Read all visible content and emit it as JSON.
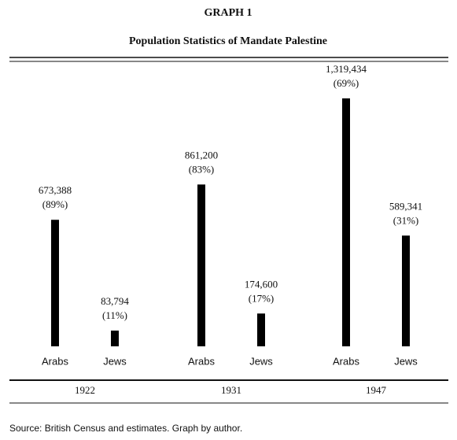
{
  "chart_data": {
    "type": "bar",
    "title": "GRAPH 1",
    "subtitle": "Population Statistics of Mandate Palestine",
    "source": "Source: British Census and estimates. Graph by author.",
    "categories": [
      "1922",
      "1931",
      "1947"
    ],
    "series": [
      {
        "name": "Arabs",
        "color": "#000000",
        "values": [
          673388,
          861200,
          1319434
        ],
        "value_labels": [
          "673,388",
          "861,200",
          "1,319,434"
        ],
        "shares": [
          89,
          83,
          69
        ],
        "share_labels": [
          "(89%)",
          "(83%)",
          "(69%)"
        ]
      },
      {
        "name": "Jews",
        "color": "#000000",
        "values": [
          83794,
          174600,
          589341
        ],
        "value_labels": [
          "83,794",
          "174,600",
          "589,341"
        ],
        "shares": [
          11,
          17,
          31
        ],
        "share_labels": [
          "(11%)",
          "(17%)",
          "(31%)"
        ]
      }
    ]
  }
}
